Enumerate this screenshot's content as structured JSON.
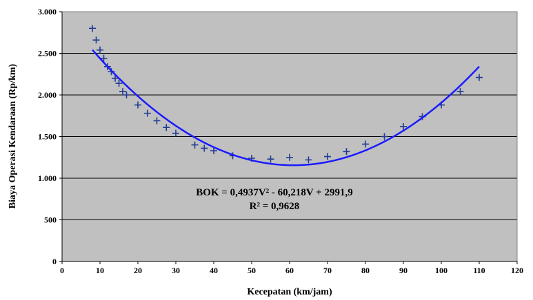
{
  "chart_data": {
    "type": "scatter",
    "xlabel": "Kecepatan (km/jam)",
    "ylabel": "Biaya Operasi Kendaraan (Rp/km)",
    "xlim": [
      0,
      120
    ],
    "ylim": [
      0,
      3000
    ],
    "xticks": [
      0,
      10,
      20,
      30,
      40,
      50,
      60,
      70,
      80,
      90,
      100,
      110,
      120
    ],
    "yticks": [
      0,
      500,
      1000,
      1500,
      2000,
      2500,
      3000
    ],
    "xtick_labels": [
      "0",
      "10",
      "20",
      "30",
      "40",
      "50",
      "60",
      "70",
      "80",
      "90",
      "100",
      "110",
      "120"
    ],
    "ytick_labels": [
      "0",
      "500",
      "1.000",
      "1.500",
      "2.000",
      "2.500",
      "3.000"
    ],
    "grid": "horizontal",
    "background_color": "#c0c0c0",
    "marker_color": "#1f3a93",
    "trend_color": "#1a1aff",
    "points": [
      {
        "x": 8,
        "y": 2800
      },
      {
        "x": 9,
        "y": 2660
      },
      {
        "x": 10,
        "y": 2540
      },
      {
        "x": 11,
        "y": 2440
      },
      {
        "x": 12,
        "y": 2340
      },
      {
        "x": 13,
        "y": 2280
      },
      {
        "x": 14,
        "y": 2200
      },
      {
        "x": 15,
        "y": 2140
      },
      {
        "x": 16,
        "y": 2040
      },
      {
        "x": 17,
        "y": 2000
      },
      {
        "x": 20,
        "y": 1880
      },
      {
        "x": 22.5,
        "y": 1780
      },
      {
        "x": 25,
        "y": 1690
      },
      {
        "x": 27.5,
        "y": 1610
      },
      {
        "x": 30,
        "y": 1540
      },
      {
        "x": 35,
        "y": 1400
      },
      {
        "x": 37.5,
        "y": 1360
      },
      {
        "x": 40,
        "y": 1330
      },
      {
        "x": 45,
        "y": 1270
      },
      {
        "x": 50,
        "y": 1240
      },
      {
        "x": 55,
        "y": 1230
      },
      {
        "x": 60,
        "y": 1250
      },
      {
        "x": 65,
        "y": 1220
      },
      {
        "x": 70,
        "y": 1260
      },
      {
        "x": 75,
        "y": 1320
      },
      {
        "x": 80,
        "y": 1410
      },
      {
        "x": 85,
        "y": 1500
      },
      {
        "x": 90,
        "y": 1620
      },
      {
        "x": 95,
        "y": 1740
      },
      {
        "x": 100,
        "y": 1880
      },
      {
        "x": 105,
        "y": 2040
      },
      {
        "x": 110,
        "y": 2210
      }
    ],
    "trendline": {
      "type": "polynomial",
      "coefficients": [
        0.4937,
        -60.218,
        2991.9
      ],
      "x_range": [
        8,
        110
      ]
    },
    "annotations": {
      "equation": "BOK = 0,4937V² - 60,218V + 2991,9",
      "r_squared": "R² = 0,9628"
    }
  }
}
